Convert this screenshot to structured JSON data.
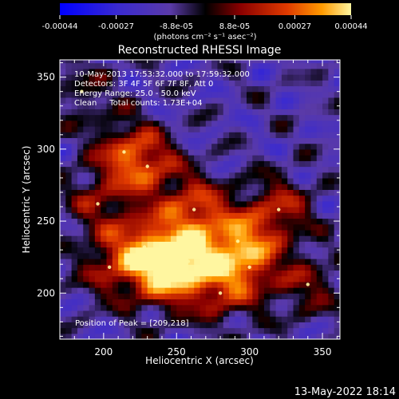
{
  "chart_data": {
    "type": "heatmap",
    "title": "Reconstructed RHESSI Image",
    "xlabel": "Heliocentric X (arcsec)",
    "ylabel": "Heliocentric Y (arcsec)",
    "xlim": [
      170,
      362
    ],
    "ylim": [
      168,
      362
    ],
    "xticks": [
      200,
      250,
      300,
      350
    ],
    "yticks": [
      200,
      250,
      300,
      350
    ],
    "colorbar": {
      "ticks": [
        "-0.00044",
        "-0.00027",
        "-8.8e-05",
        "8.8e-05",
        "0.00027",
        "0.00044"
      ],
      "tick_values": [
        -0.00044,
        -0.00027,
        -8.8e-05,
        8.8e-05,
        0.00027,
        0.00044
      ],
      "label": "(photons cm⁻² s⁻¹ asec⁻²)",
      "range": [
        -0.00044,
        0.00044
      ],
      "colors": [
        "#0000ff",
        "#5a3aa8",
        "#000000",
        "#8a0000",
        "#e03a00",
        "#ff9a00",
        "#fff6a0"
      ]
    },
    "annotations": {
      "time": "10-May-2013 17:53:32.000 to 17:59:32.000",
      "detectors": "Detectors: 3F 4F 5F 6F 7F 8F, Att 0",
      "energy": "Energy Range: 25.0 - 50.0 keV",
      "clean": "Clean     Total counts: 1.73E+04",
      "peak": "Position of Peak = [209,218]"
    },
    "peak": [
      209,
      218
    ],
    "bright_sources": [
      {
        "x": 258,
        "y": 222,
        "value": 0.00044
      },
      {
        "x": 228,
        "y": 232,
        "value": 0.00036
      },
      {
        "x": 262,
        "y": 258,
        "value": 0.00033
      },
      {
        "x": 292,
        "y": 236,
        "value": 0.00032
      },
      {
        "x": 320,
        "y": 258,
        "value": 0.00026
      },
      {
        "x": 300,
        "y": 218,
        "value": 0.00024
      },
      {
        "x": 214,
        "y": 298,
        "value": 0.00024
      },
      {
        "x": 230,
        "y": 288,
        "value": 0.00026
      },
      {
        "x": 196,
        "y": 262,
        "value": 0.00019
      },
      {
        "x": 238,
        "y": 210,
        "value": 0.00026
      },
      {
        "x": 340,
        "y": 206,
        "value": 0.00018
      },
      {
        "x": 204,
        "y": 218,
        "value": 0.0002
      },
      {
        "x": 280,
        "y": 200,
        "value": 0.0002
      },
      {
        "x": 185,
        "y": 340,
        "value": 0.00012
      }
    ]
  },
  "footer": {
    "timestamp": "13-May-2022 18:14"
  }
}
